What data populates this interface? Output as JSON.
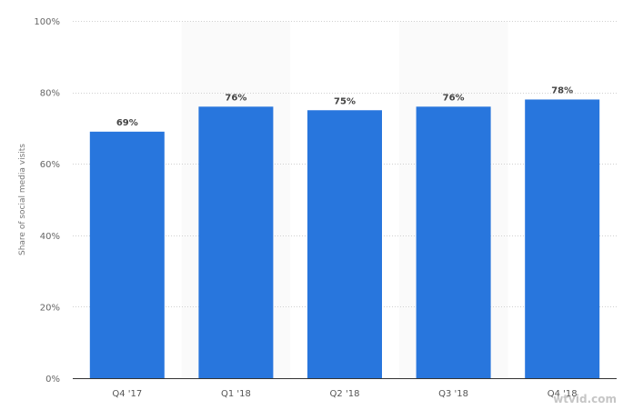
{
  "chart_data": {
    "type": "bar",
    "categories": [
      "Q4 '17",
      "Q1 '18",
      "Q2 '18",
      "Q3 '18",
      "Q4 '18"
    ],
    "values": [
      69,
      76,
      75,
      76,
      78
    ],
    "data_labels": [
      "69%",
      "76%",
      "75%",
      "76%",
      "78%"
    ],
    "ylabel": "Share of social media visits",
    "ylim": [
      0,
      100
    ],
    "yticks": [
      0,
      20,
      40,
      60,
      80,
      100
    ],
    "ytick_labels": [
      "0%",
      "20%",
      "40%",
      "60%",
      "80%",
      "100%"
    ],
    "grid": true,
    "alternating_bands": true,
    "colors": {
      "bar": "#2876dd",
      "band": "#fafafa",
      "grid": "#d0d0d0",
      "axis": "#333333"
    }
  },
  "watermark": "wtvid.com"
}
